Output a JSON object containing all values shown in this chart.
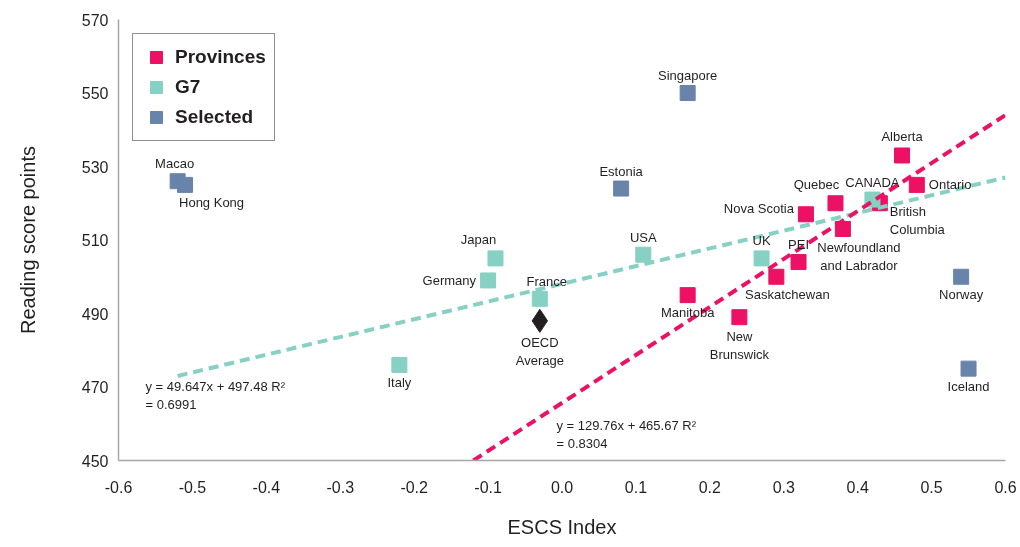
{
  "chart_data": {
    "type": "scatter",
    "xlabel": "ESCS Index",
    "ylabel": "Reading score points",
    "xlim": [
      -0.6,
      0.6
    ],
    "ylim": [
      450,
      570
    ],
    "xticks": [
      -0.6,
      -0.5,
      -0.4,
      -0.3,
      -0.2,
      -0.1,
      {
        "value": 0,
        "label": "0.0"
      },
      0.1,
      0.2,
      0.3,
      0.4,
      0.5,
      0.6
    ],
    "yticks": [
      450,
      470,
      490,
      510,
      530,
      550,
      570
    ],
    "marker": "square",
    "legend": "top left",
    "series": [
      {
        "name": "Provinces",
        "color": "#ec1164",
        "x": [
          0.46,
          0.48,
          0.37,
          0.43,
          0.33,
          0.38,
          0.32,
          0.29,
          0.17,
          0.24
        ],
        "values": [
          533,
          525,
          520,
          520,
          517,
          513,
          504,
          500,
          495,
          489
        ]
      },
      {
        "name": "G7",
        "color": "#87d0c4",
        "x": [
          0.42,
          0.11,
          -0.09,
          0.27,
          -0.1,
          -0.03,
          -0.22
        ],
        "values": [
          521,
          506,
          505,
          505,
          499,
          494,
          476
        ]
      },
      {
        "name": "Selected",
        "color": "#6884ab",
        "x": [
          0.17,
          -0.52,
          -0.51,
          0.08,
          0.54,
          0.55
        ],
        "values": [
          550,
          526,
          525,
          524,
          500,
          475
        ]
      },
      {
        "color": "#231f20",
        "marker": "diamond",
        "x": [
          -0.03
        ],
        "values": [
          488
        ]
      },
      {
        "type": "line",
        "color": "#87d0c4",
        "line_style": "dashed",
        "marker": "none",
        "x": [
          -0.52,
          0.6
        ],
        "values": [
          473,
          527
        ]
      },
      {
        "type": "line",
        "color": "#ec1164",
        "line_style": "dashed",
        "marker": "none",
        "x": [
          -0.12,
          0.6
        ],
        "values": [
          450,
          544
        ]
      }
    ],
    "annotations": [
      {
        "text": "Alberta",
        "x": 0.46,
        "y": 533
      },
      {
        "text": "Ontario",
        "x": 0.48,
        "y": 525
      },
      {
        "text": "Quebec",
        "x": 0.37,
        "y": 520
      },
      {
        "text": "British Columbia",
        "x": 0.43,
        "y": 520
      },
      {
        "text": "Nova Scotia",
        "x": 0.33,
        "y": 517
      },
      {
        "text": "Newfoundland and Labrador",
        "x": 0.38,
        "y": 513
      },
      {
        "text": "PEI",
        "x": 0.32,
        "y": 504
      },
      {
        "text": "Saskatchewan",
        "x": 0.29,
        "y": 500
      },
      {
        "text": "Manitoba",
        "x": 0.17,
        "y": 495
      },
      {
        "text": "New Brunswick",
        "x": 0.24,
        "y": 489
      },
      {
        "text": "CANADA",
        "x": 0.42,
        "y": 521
      },
      {
        "text": "USA",
        "x": 0.11,
        "y": 506
      },
      {
        "text": "Japan",
        "x": -0.09,
        "y": 505
      },
      {
        "text": "UK",
        "x": 0.27,
        "y": 505
      },
      {
        "text": "Germany",
        "x": -0.1,
        "y": 499
      },
      {
        "text": "France",
        "x": -0.03,
        "y": 494
      },
      {
        "text": "Italy",
        "x": -0.22,
        "y": 476
      },
      {
        "text": "Singapore",
        "x": 0.17,
        "y": 550
      },
      {
        "text": "Macao",
        "x": -0.52,
        "y": 526
      },
      {
        "text": "Hong Kong",
        "x": -0.51,
        "y": 525
      },
      {
        "text": "Estonia",
        "x": 0.08,
        "y": 524
      },
      {
        "text": "Norway",
        "x": 0.54,
        "y": 500
      },
      {
        "text": "Iceland",
        "x": 0.55,
        "y": 475
      },
      {
        "text": "OECD Average",
        "x": -0.03,
        "y": 488
      },
      "y = 49.647x + 497.48 R² = 0.6991",
      "y = 129.76x + 465.67 R² = 0.8304"
    ]
  }
}
